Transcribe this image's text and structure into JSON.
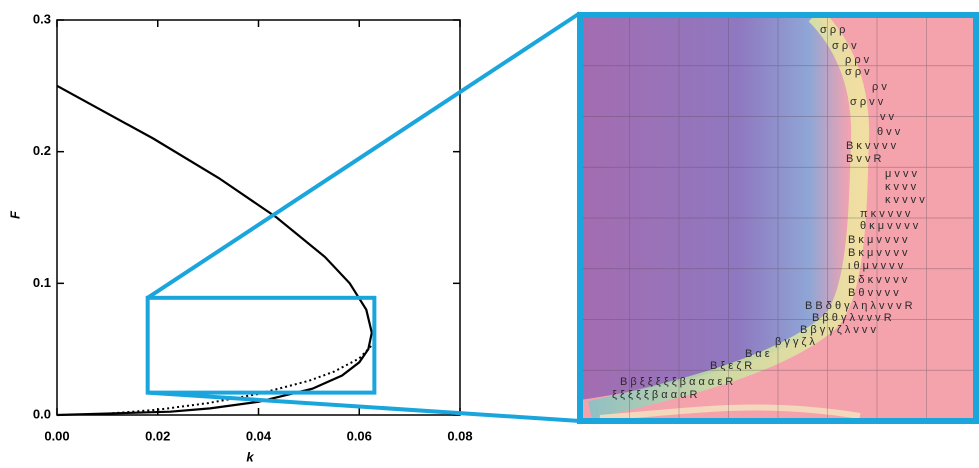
{
  "chart_data": {
    "type": "line",
    "x_label": "k",
    "y_label": "F",
    "xlim": [
      0,
      0.08
    ],
    "ylim": [
      0,
      0.3
    ],
    "xticks": [
      {
        "value": 0,
        "label": "0.00"
      },
      0.02,
      0.04,
      0.06,
      0.08
    ],
    "yticks": [
      {
        "value": 0,
        "label": "0.0"
      },
      0.1,
      0.2,
      0.3
    ],
    "series": [
      {
        "color": "#000000",
        "style": "solid",
        "x": [
          0,
          0.0225,
          0.0304,
          0.04,
          0.0507,
          0.0566,
          0.06,
          0.0618,
          0.0625,
          0.0614,
          0.0581,
          0.0532,
          0.0436,
          0.0321,
          0.0191,
          0
        ],
        "values": [
          0,
          0.0025,
          0.005,
          0.01,
          0.02,
          0.03,
          0.04,
          0.05,
          0.0625,
          0.08,
          0.1,
          0.12,
          0.15,
          0.18,
          0.21,
          0.25
        ]
      },
      {
        "color": "#000000",
        "style": "dotted",
        "x": [
          0.01,
          0.02,
          0.03,
          0.04,
          0.05,
          0.055,
          0.06,
          0.063
        ],
        "values": [
          0.001,
          0.004,
          0.009,
          0.016,
          0.026,
          0.033,
          0.043,
          0.055
        ]
      }
    ],
    "zoom": {
      "color": "#1ba5dd",
      "xlim": [
        0.018,
        0.063
      ],
      "ylim": [
        0.017,
        0.089
      ]
    }
  },
  "phase_diagram": {
    "labels": [
      "σ ρ ρ",
      "σ ρ v",
      "ρ ρ v",
      "σ ρ v",
      "ρ v",
      "σ ρ v v",
      "v v",
      "θ v v",
      "B κ v v v v",
      "B v v R",
      "μ v v v",
      "κ v v v",
      "κ v v v v",
      "π κ v v v v",
      "θ κ μ v v v v",
      "B κ μ v v v v",
      "B κ μ v v v v",
      "ι θ μ v v v v",
      "B δ κ v v v v",
      "B θ v v v v",
      "B B δ θ γ λ η λ v v v R",
      "B β θ γ λ v v v R",
      "B β γ γ ζ λ v v v",
      "β γ γ ζ λ",
      "B α ε",
      "B ξ ε ζ R",
      "B β ξ ξ ξ ξ ξ β α α α ε R",
      "ξ ξ ξ ξ ξ β α α α R"
    ]
  }
}
